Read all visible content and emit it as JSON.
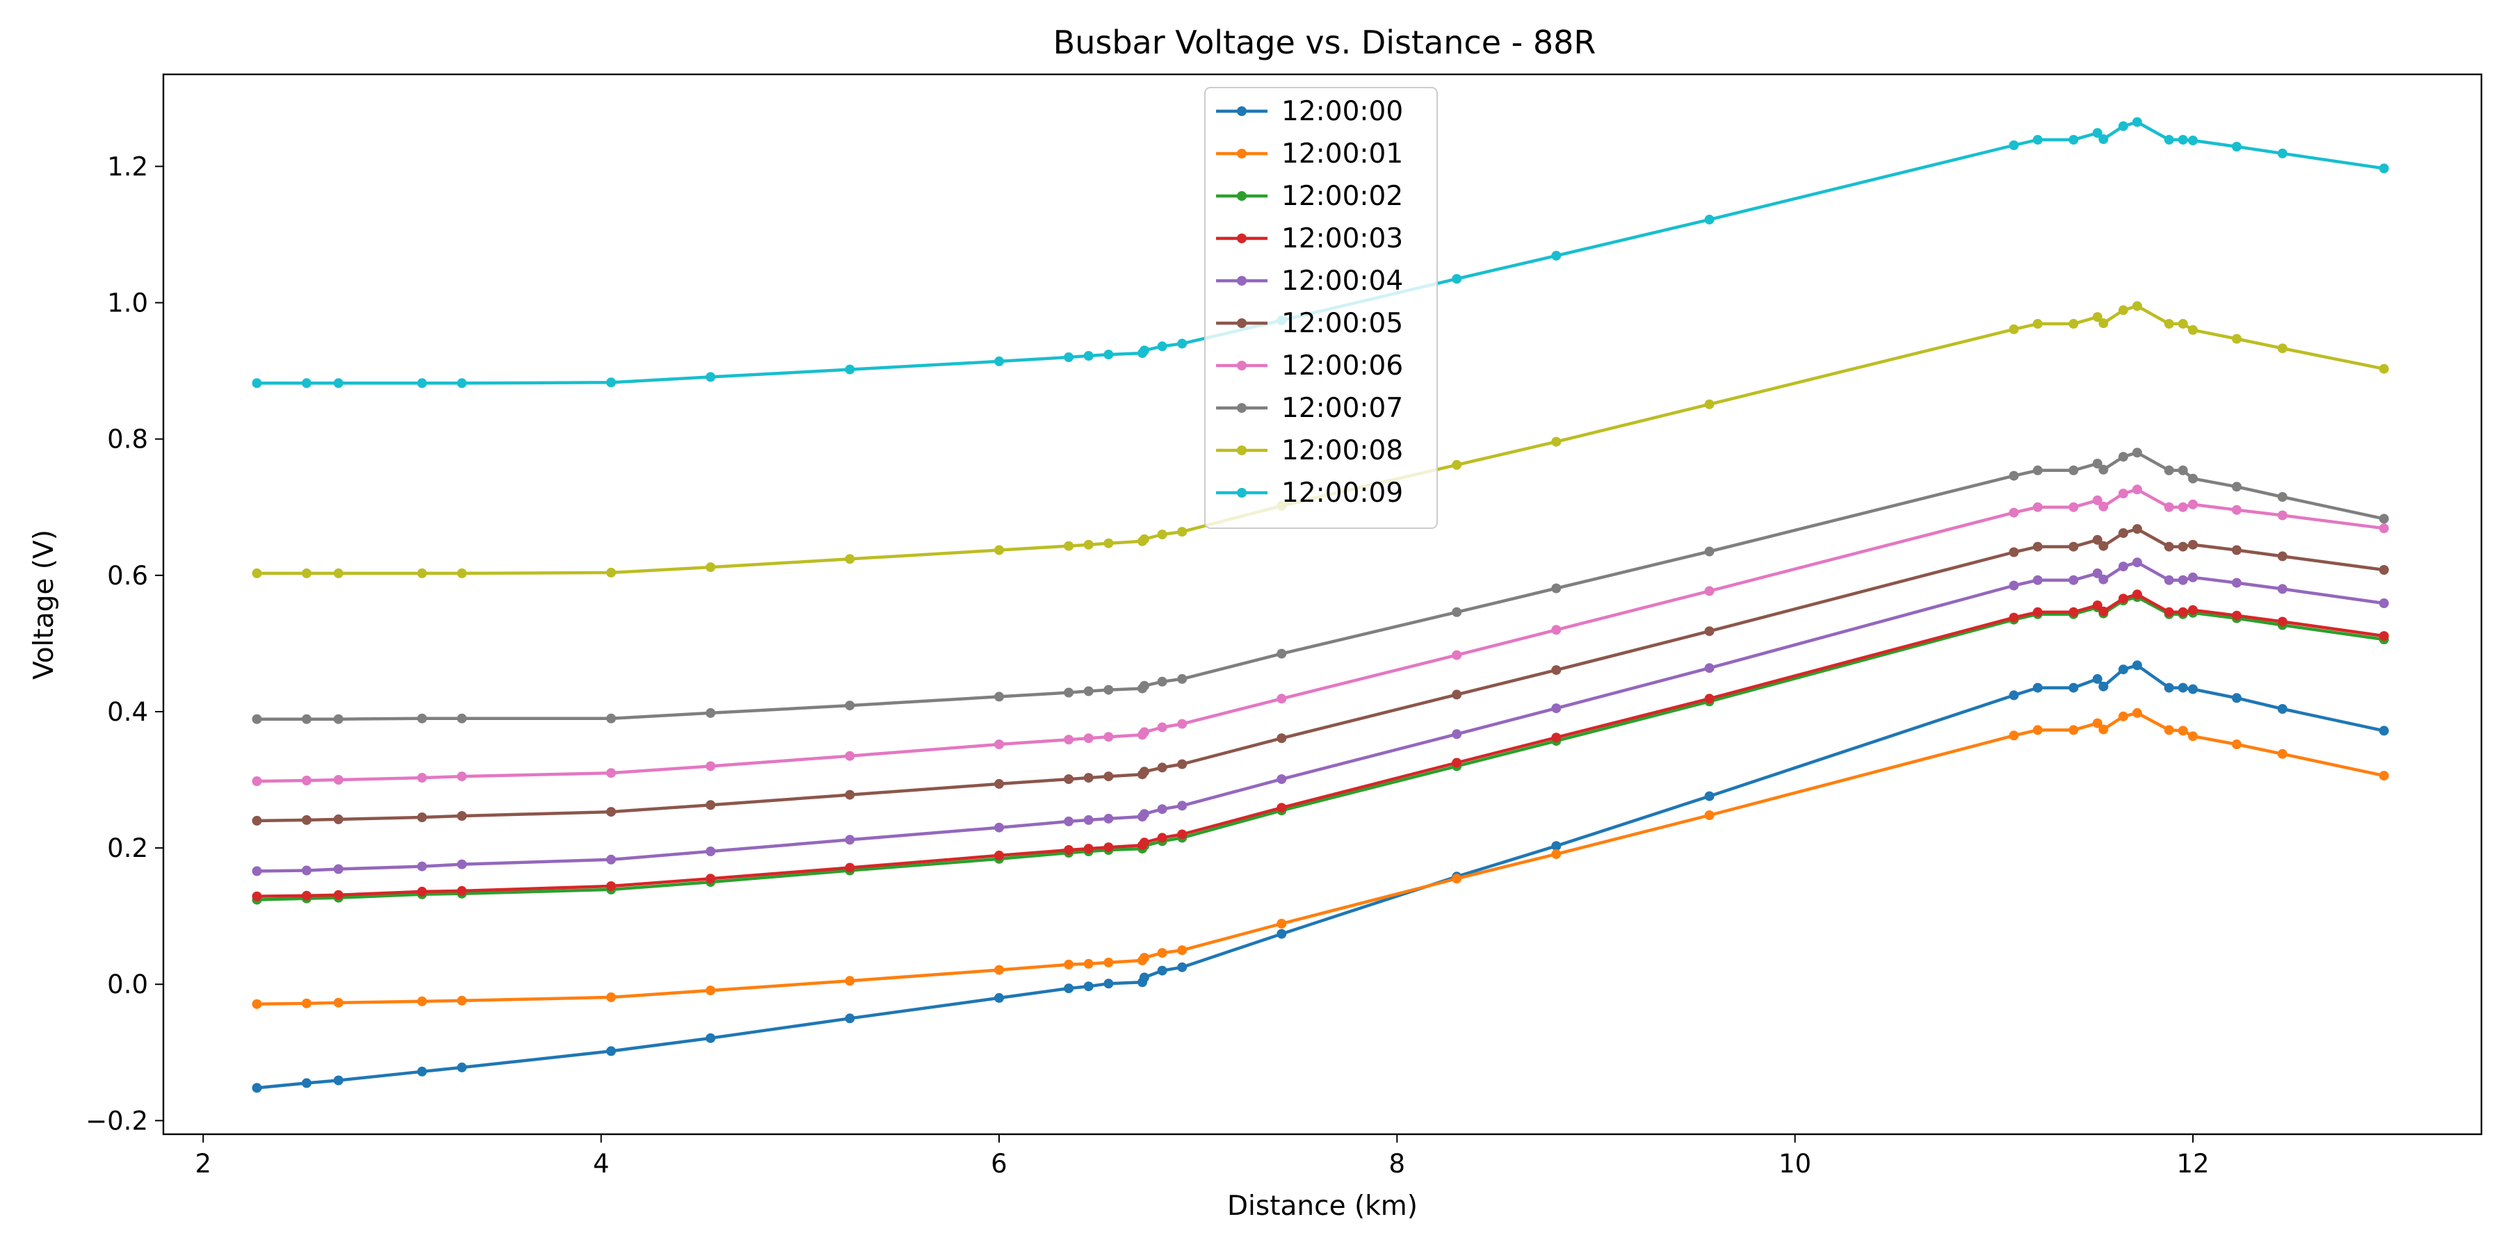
{
  "chart_data": {
    "type": "line",
    "title": "Busbar Voltage vs. Distance - 88R",
    "xlabel": "Distance (km)",
    "ylabel": "Voltage (V)",
    "xlim": [
      1.8,
      13.45
    ],
    "ylim": [
      -0.22,
      1.335
    ],
    "xticks": [
      2,
      4,
      6,
      8,
      10,
      12
    ],
    "yticks": [
      -0.2,
      0.0,
      0.2,
      0.4,
      0.6,
      0.8,
      1.0,
      1.2
    ],
    "xtick_labels": [
      "2",
      "4",
      "6",
      "8",
      "10",
      "12"
    ],
    "ytick_labels": [
      "−0.2",
      "0.0",
      "0.2",
      "0.4",
      "0.6",
      "0.8",
      "1.0",
      "1.2"
    ],
    "grid": false,
    "legend_position": "upper center",
    "x": [
      2.27,
      2.52,
      2.68,
      3.1,
      3.3,
      4.05,
      4.55,
      5.25,
      6.0,
      6.35,
      6.45,
      6.55,
      6.72,
      6.73,
      6.82,
      6.92,
      7.42,
      8.3,
      8.8,
      9.57,
      11.1,
      11.22,
      11.4,
      11.52,
      11.55,
      11.65,
      11.72,
      11.88,
      11.95,
      12.0,
      12.22,
      12.45,
      12.96
    ],
    "series": [
      {
        "name": "12:00:00",
        "color": "#1f77b4",
        "values": [
          -0.152,
          -0.145,
          -0.141,
          -0.128,
          -0.122,
          -0.098,
          -0.079,
          -0.05,
          -0.02,
          -0.006,
          -0.003,
          0.001,
          0.003,
          0.01,
          0.02,
          0.025,
          0.074,
          0.158,
          0.203,
          0.276,
          0.424,
          0.435,
          0.435,
          0.448,
          0.437,
          0.462,
          0.468,
          0.435,
          0.435,
          0.433,
          0.42,
          0.404,
          0.372
        ]
      },
      {
        "name": "12:00:01",
        "color": "#ff7f0e",
        "values": [
          -0.029,
          -0.028,
          -0.027,
          -0.025,
          -0.024,
          -0.019,
          -0.009,
          0.005,
          0.021,
          0.029,
          0.03,
          0.032,
          0.035,
          0.039,
          0.046,
          0.05,
          0.089,
          0.155,
          0.191,
          0.248,
          0.365,
          0.373,
          0.373,
          0.383,
          0.374,
          0.393,
          0.398,
          0.373,
          0.372,
          0.364,
          0.352,
          0.338,
          0.306
        ]
      },
      {
        "name": "12:00:02",
        "color": "#2ca02c",
        "values": [
          0.124,
          0.126,
          0.127,
          0.132,
          0.133,
          0.139,
          0.15,
          0.167,
          0.184,
          0.193,
          0.195,
          0.197,
          0.199,
          0.203,
          0.21,
          0.215,
          0.255,
          0.32,
          0.357,
          0.415,
          0.535,
          0.543,
          0.543,
          0.553,
          0.544,
          0.563,
          0.568,
          0.543,
          0.543,
          0.545,
          0.537,
          0.527,
          0.506
        ]
      },
      {
        "name": "12:00:03",
        "color": "#d62728",
        "values": [
          0.129,
          0.13,
          0.131,
          0.136,
          0.137,
          0.144,
          0.155,
          0.171,
          0.189,
          0.197,
          0.199,
          0.201,
          0.204,
          0.208,
          0.215,
          0.22,
          0.259,
          0.325,
          0.362,
          0.419,
          0.538,
          0.546,
          0.546,
          0.556,
          0.547,
          0.566,
          0.572,
          0.546,
          0.546,
          0.549,
          0.541,
          0.532,
          0.511
        ]
      },
      {
        "name": "12:00:04",
        "color": "#9467bd",
        "values": [
          0.166,
          0.167,
          0.169,
          0.173,
          0.176,
          0.183,
          0.195,
          0.212,
          0.23,
          0.239,
          0.241,
          0.243,
          0.246,
          0.25,
          0.257,
          0.262,
          0.301,
          0.367,
          0.405,
          0.464,
          0.585,
          0.593,
          0.593,
          0.603,
          0.594,
          0.613,
          0.619,
          0.593,
          0.593,
          0.597,
          0.589,
          0.58,
          0.559
        ]
      },
      {
        "name": "12:00:05",
        "color": "#8c564b",
        "values": [
          0.24,
          0.241,
          0.242,
          0.245,
          0.247,
          0.253,
          0.263,
          0.278,
          0.294,
          0.301,
          0.303,
          0.305,
          0.308,
          0.312,
          0.318,
          0.323,
          0.361,
          0.425,
          0.461,
          0.518,
          0.634,
          0.642,
          0.642,
          0.652,
          0.643,
          0.662,
          0.668,
          0.642,
          0.642,
          0.645,
          0.637,
          0.628,
          0.608
        ]
      },
      {
        "name": "12:00:06",
        "color": "#e377c2",
        "values": [
          0.298,
          0.299,
          0.3,
          0.303,
          0.305,
          0.31,
          0.32,
          0.335,
          0.352,
          0.359,
          0.361,
          0.363,
          0.366,
          0.37,
          0.377,
          0.382,
          0.419,
          0.483,
          0.52,
          0.577,
          0.692,
          0.7,
          0.7,
          0.71,
          0.701,
          0.72,
          0.726,
          0.7,
          0.7,
          0.704,
          0.696,
          0.688,
          0.669
        ]
      },
      {
        "name": "12:00:07",
        "color": "#7f7f7f",
        "values": [
          0.389,
          0.389,
          0.389,
          0.39,
          0.39,
          0.39,
          0.398,
          0.409,
          0.422,
          0.428,
          0.43,
          0.432,
          0.434,
          0.438,
          0.444,
          0.448,
          0.485,
          0.546,
          0.581,
          0.635,
          0.746,
          0.754,
          0.754,
          0.764,
          0.755,
          0.774,
          0.78,
          0.754,
          0.754,
          0.742,
          0.73,
          0.715,
          0.683
        ]
      },
      {
        "name": "12:00:08",
        "color": "#bcbd22",
        "values": [
          0.603,
          0.603,
          0.603,
          0.603,
          0.603,
          0.604,
          0.612,
          0.624,
          0.637,
          0.643,
          0.645,
          0.647,
          0.65,
          0.653,
          0.66,
          0.664,
          0.702,
          0.762,
          0.796,
          0.851,
          0.961,
          0.969,
          0.969,
          0.979,
          0.97,
          0.989,
          0.995,
          0.969,
          0.969,
          0.96,
          0.947,
          0.933,
          0.903
        ]
      },
      {
        "name": "12:00:09",
        "color": "#17becf",
        "values": [
          0.882,
          0.882,
          0.882,
          0.882,
          0.882,
          0.883,
          0.891,
          0.902,
          0.914,
          0.92,
          0.922,
          0.924,
          0.926,
          0.93,
          0.936,
          0.94,
          0.974,
          1.035,
          1.069,
          1.122,
          1.231,
          1.239,
          1.239,
          1.249,
          1.24,
          1.259,
          1.265,
          1.239,
          1.239,
          1.238,
          1.229,
          1.219,
          1.197
        ]
      }
    ]
  }
}
